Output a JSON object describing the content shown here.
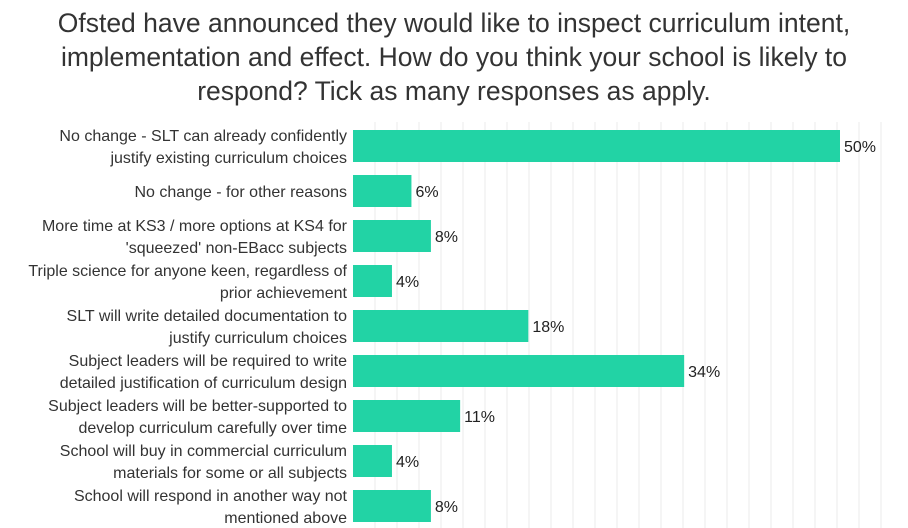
{
  "chart_data": {
    "type": "bar",
    "orientation": "horizontal",
    "title_lines": [
      "Ofsted have announced they would like to inspect curriculum intent,",
      "implementation and effect. How do you think your school is likely to",
      "respond? Tick as many responses as apply."
    ],
    "categories": [
      [
        "No change - SLT can already confidently",
        "justify existing curriculum choices"
      ],
      [
        "No change - for other reasons"
      ],
      [
        "More time at KS3 / more options at KS4 for",
        "'squeezed' non-EBacc subjects"
      ],
      [
        "Triple science for anyone keen, regardless of",
        "prior achievement"
      ],
      [
        "SLT will write detailed documentation to",
        "justify curriculum choices"
      ],
      [
        "Subject leaders will be required to write",
        "detailed justification of curriculum design"
      ],
      [
        "Subject leaders will be better-supported to",
        "develop curriculum carefully over time"
      ],
      [
        "School will buy in commercial curriculum",
        "materials for some or all subjects"
      ],
      [
        "School will respond in another way not",
        "mentioned above"
      ]
    ],
    "values": [
      50,
      6,
      8,
      4,
      18,
      34,
      11,
      4,
      8
    ],
    "value_labels": [
      "50%",
      "6%",
      "8%",
      "4%",
      "18%",
      "34%",
      "11%",
      "4%",
      "8%"
    ],
    "unit": "%",
    "xlim": [
      0,
      60
    ],
    "grid": true,
    "colors": {
      "bar": "#22d3a5",
      "grid": "#ebebeb",
      "text": "#222222"
    }
  }
}
